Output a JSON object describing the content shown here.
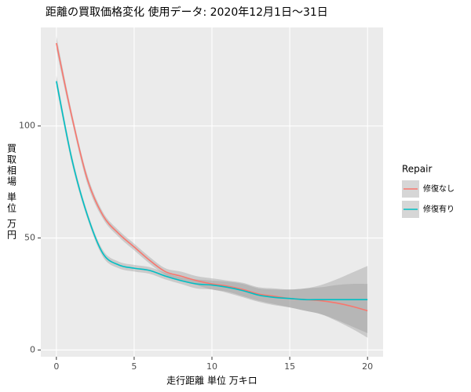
{
  "chart_data": {
    "type": "line",
    "title": "距離の買取価格変化 使用データ: 2020年12月1日～31日",
    "xlabel": "走行距離 単位 万キロ",
    "ylabel": "買取相場 単位 万円",
    "legend_title": "Repair",
    "x": [
      0,
      1,
      2,
      3,
      4,
      5,
      6,
      7,
      8,
      9,
      10,
      11,
      12,
      13,
      14,
      15,
      16,
      17,
      18,
      19,
      20
    ],
    "series": [
      {
        "name": "修復なし",
        "color": "#F8766D",
        "values": [
          137,
          104,
          76,
          60,
          52,
          46,
          40,
          35,
          33,
          31,
          29.5,
          28.5,
          27,
          25,
          24,
          23,
          22.5,
          22,
          21,
          19.5,
          17.5
        ],
        "lower": [
          134,
          102,
          74,
          58.5,
          50.5,
          44.5,
          38.5,
          33.5,
          31,
          29,
          27,
          26,
          24,
          22,
          20.5,
          19,
          17.5,
          16,
          13,
          9.5,
          5.5
        ],
        "upper": [
          140,
          106,
          78,
          61.5,
          53.5,
          47.5,
          41.5,
          36.5,
          35,
          33,
          32,
          31,
          30,
          28,
          27.5,
          27,
          27.5,
          28,
          29,
          29.5,
          29.5
        ]
      },
      {
        "name": "修復有り",
        "color": "#00BFC4",
        "values": [
          120,
          85,
          60,
          43,
          38,
          36.5,
          35.5,
          33,
          31,
          29.5,
          29,
          28,
          26.5,
          24.5,
          23.5,
          23,
          22.5,
          22.5,
          22.5,
          22.5,
          22.5
        ],
        "lower": [
          117.5,
          83,
          58.5,
          41.5,
          36.5,
          35,
          34,
          31.5,
          29.5,
          27.5,
          27,
          25.5,
          23.5,
          21.5,
          20,
          19,
          17.5,
          16,
          13.5,
          10.5,
          7.5
        ],
        "upper": [
          122.5,
          87,
          61.5,
          44.5,
          39.5,
          38,
          37,
          34.5,
          32.5,
          31.5,
          31,
          30.5,
          29.5,
          27.5,
          27,
          27,
          27.5,
          29,
          31.5,
          34.5,
          37.5
        ]
      }
    ],
    "xlim": [
      -1,
      21
    ],
    "ylim": [
      -3,
      144
    ],
    "xticks": [
      0,
      5,
      10,
      15,
      20
    ],
    "yticks": [
      0,
      50,
      100
    ],
    "grid": true,
    "band_color": "#999999"
  }
}
